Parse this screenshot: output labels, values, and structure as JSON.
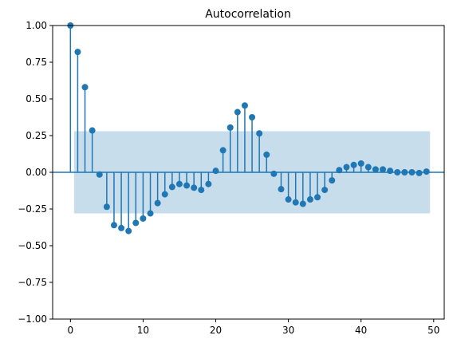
{
  "chart_data": {
    "type": "stem",
    "title": "Autocorrelation",
    "xlabel": "",
    "ylabel": "",
    "xlim": [
      -2.45,
      51.45
    ],
    "ylim": [
      -1.0,
      1.0
    ],
    "x_ticks": [
      0,
      10,
      20,
      30,
      40,
      50
    ],
    "x_tick_labels": [
      "0",
      "10",
      "20",
      "30",
      "40",
      "50"
    ],
    "y_ticks": [
      -1.0,
      -0.75,
      -0.5,
      -0.25,
      0.0,
      0.25,
      0.5,
      0.75,
      1.0
    ],
    "y_tick_labels": [
      "−1.00",
      "−0.75",
      "−0.50",
      "−0.25",
      "0.00",
      "0.25",
      "0.50",
      "0.75",
      "1.00"
    ],
    "confidence_band": {
      "x_start": 0.5,
      "x_end": 49.5,
      "lower": -0.28,
      "upper": 0.28
    },
    "lags": [
      0,
      1,
      2,
      3,
      4,
      5,
      6,
      7,
      8,
      9,
      10,
      11,
      12,
      13,
      14,
      15,
      16,
      17,
      18,
      19,
      20,
      21,
      22,
      23,
      24,
      25,
      26,
      27,
      28,
      29,
      30,
      31,
      32,
      33,
      34,
      35,
      36,
      37,
      38,
      39,
      40,
      41,
      42,
      43,
      44,
      45,
      46,
      47,
      48,
      49
    ],
    "values": [
      1.0,
      0.82,
      0.58,
      0.285,
      -0.015,
      -0.235,
      -0.36,
      -0.38,
      -0.4,
      -0.345,
      -0.315,
      -0.28,
      -0.21,
      -0.15,
      -0.1,
      -0.08,
      -0.09,
      -0.105,
      -0.12,
      -0.08,
      0.01,
      0.15,
      0.305,
      0.41,
      0.455,
      0.375,
      0.265,
      0.12,
      -0.01,
      -0.115,
      -0.185,
      -0.205,
      -0.215,
      -0.185,
      -0.17,
      -0.12,
      -0.055,
      0.015,
      0.035,
      0.05,
      0.06,
      0.035,
      0.02,
      0.02,
      0.01,
      0.0,
      0.0,
      0.0,
      -0.005,
      0.005
    ],
    "colors": {
      "stem": "#1f77b4",
      "band": "#1f77b4",
      "band_opacity": 0.25,
      "axis": "#000000"
    }
  }
}
